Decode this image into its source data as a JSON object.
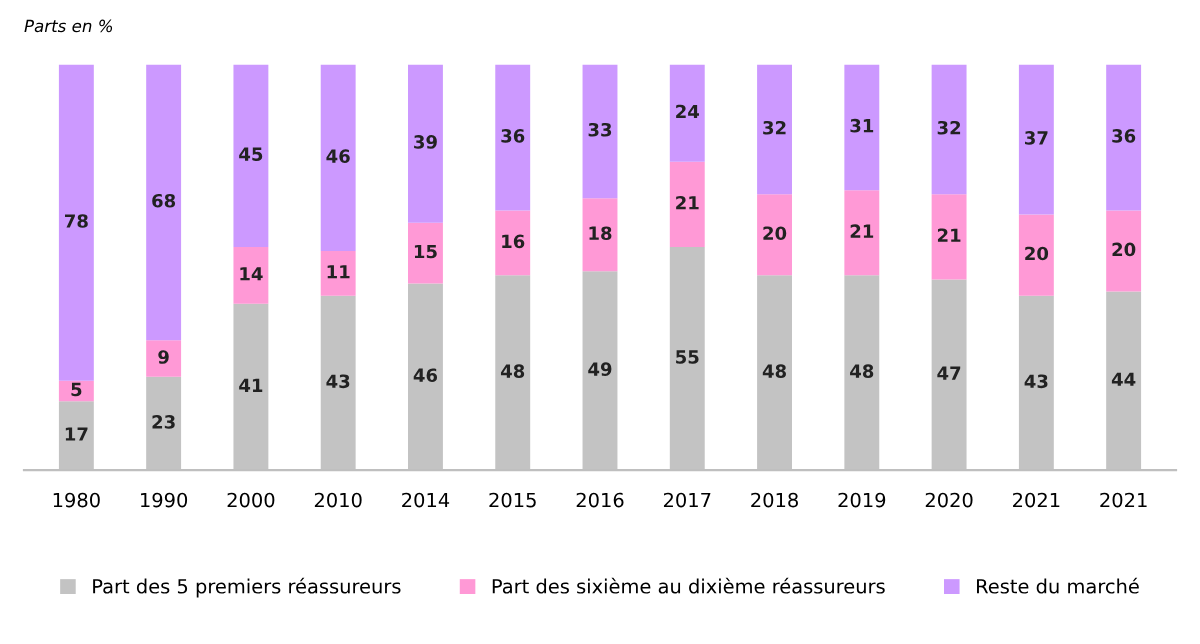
{
  "chart_data": {
    "type": "bar",
    "stacked": true,
    "subtitle": "Parts en %",
    "categories": [
      "1980",
      "1990",
      "2000",
      "2010",
      "2014",
      "2015",
      "2016",
      "2017",
      "2018",
      "2019",
      "2020",
      "2021",
      "2021"
    ],
    "series": [
      {
        "name": "Part des 5 premiers réassureurs",
        "color": "#c3c3c3",
        "values": [
          17,
          23,
          41,
          43,
          46,
          48,
          49,
          55,
          48,
          48,
          47,
          43,
          44
        ]
      },
      {
        "name": "Part des sixième au dixième réassureurs",
        "color": "#ff99d6",
        "values": [
          5,
          9,
          14,
          11,
          15,
          16,
          18,
          21,
          20,
          21,
          21,
          20,
          20
        ]
      },
      {
        "name": "Reste du marché",
        "color": "#cc99ff",
        "values": [
          78,
          68,
          45,
          46,
          39,
          36,
          33,
          24,
          32,
          31,
          32,
          37,
          36
        ]
      }
    ],
    "data_labels": true,
    "legend": "bottom",
    "grid": false
  }
}
